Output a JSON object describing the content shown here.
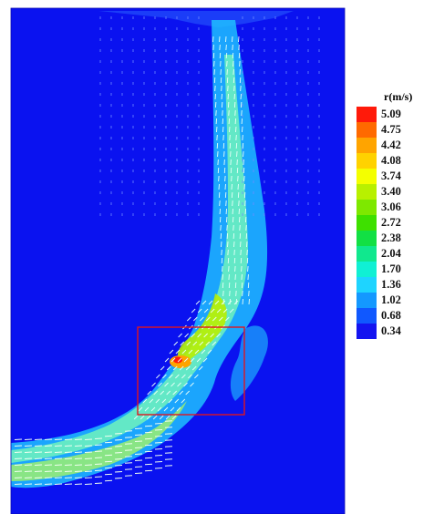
{
  "legend": {
    "title": "r(m/s)",
    "levels": [
      {
        "label": "5.09",
        "color": "#ff1a0a"
      },
      {
        "label": "4.75",
        "color": "#ff6a00"
      },
      {
        "label": "4.42",
        "color": "#ffa400"
      },
      {
        "label": "4.08",
        "color": "#ffd200"
      },
      {
        "label": "3.74",
        "color": "#f4ff00"
      },
      {
        "label": "3.40",
        "color": "#b8f000"
      },
      {
        "label": "3.06",
        "color": "#7ee800"
      },
      {
        "label": "2.72",
        "color": "#3ee000"
      },
      {
        "label": "2.38",
        "color": "#12e044"
      },
      {
        "label": "2.04",
        "color": "#10e88e"
      },
      {
        "label": "1.70",
        "color": "#10f0d4"
      },
      {
        "label": "1.36",
        "color": "#1ed4ff"
      },
      {
        "label": "1.02",
        "color": "#1498ff"
      },
      {
        "label": "0.68",
        "color": "#1058ff"
      },
      {
        "label": "0.34",
        "color": "#1414f0"
      }
    ]
  },
  "colors": {
    "background": "#0a12f0",
    "highlight_box": "#e0141e"
  }
}
